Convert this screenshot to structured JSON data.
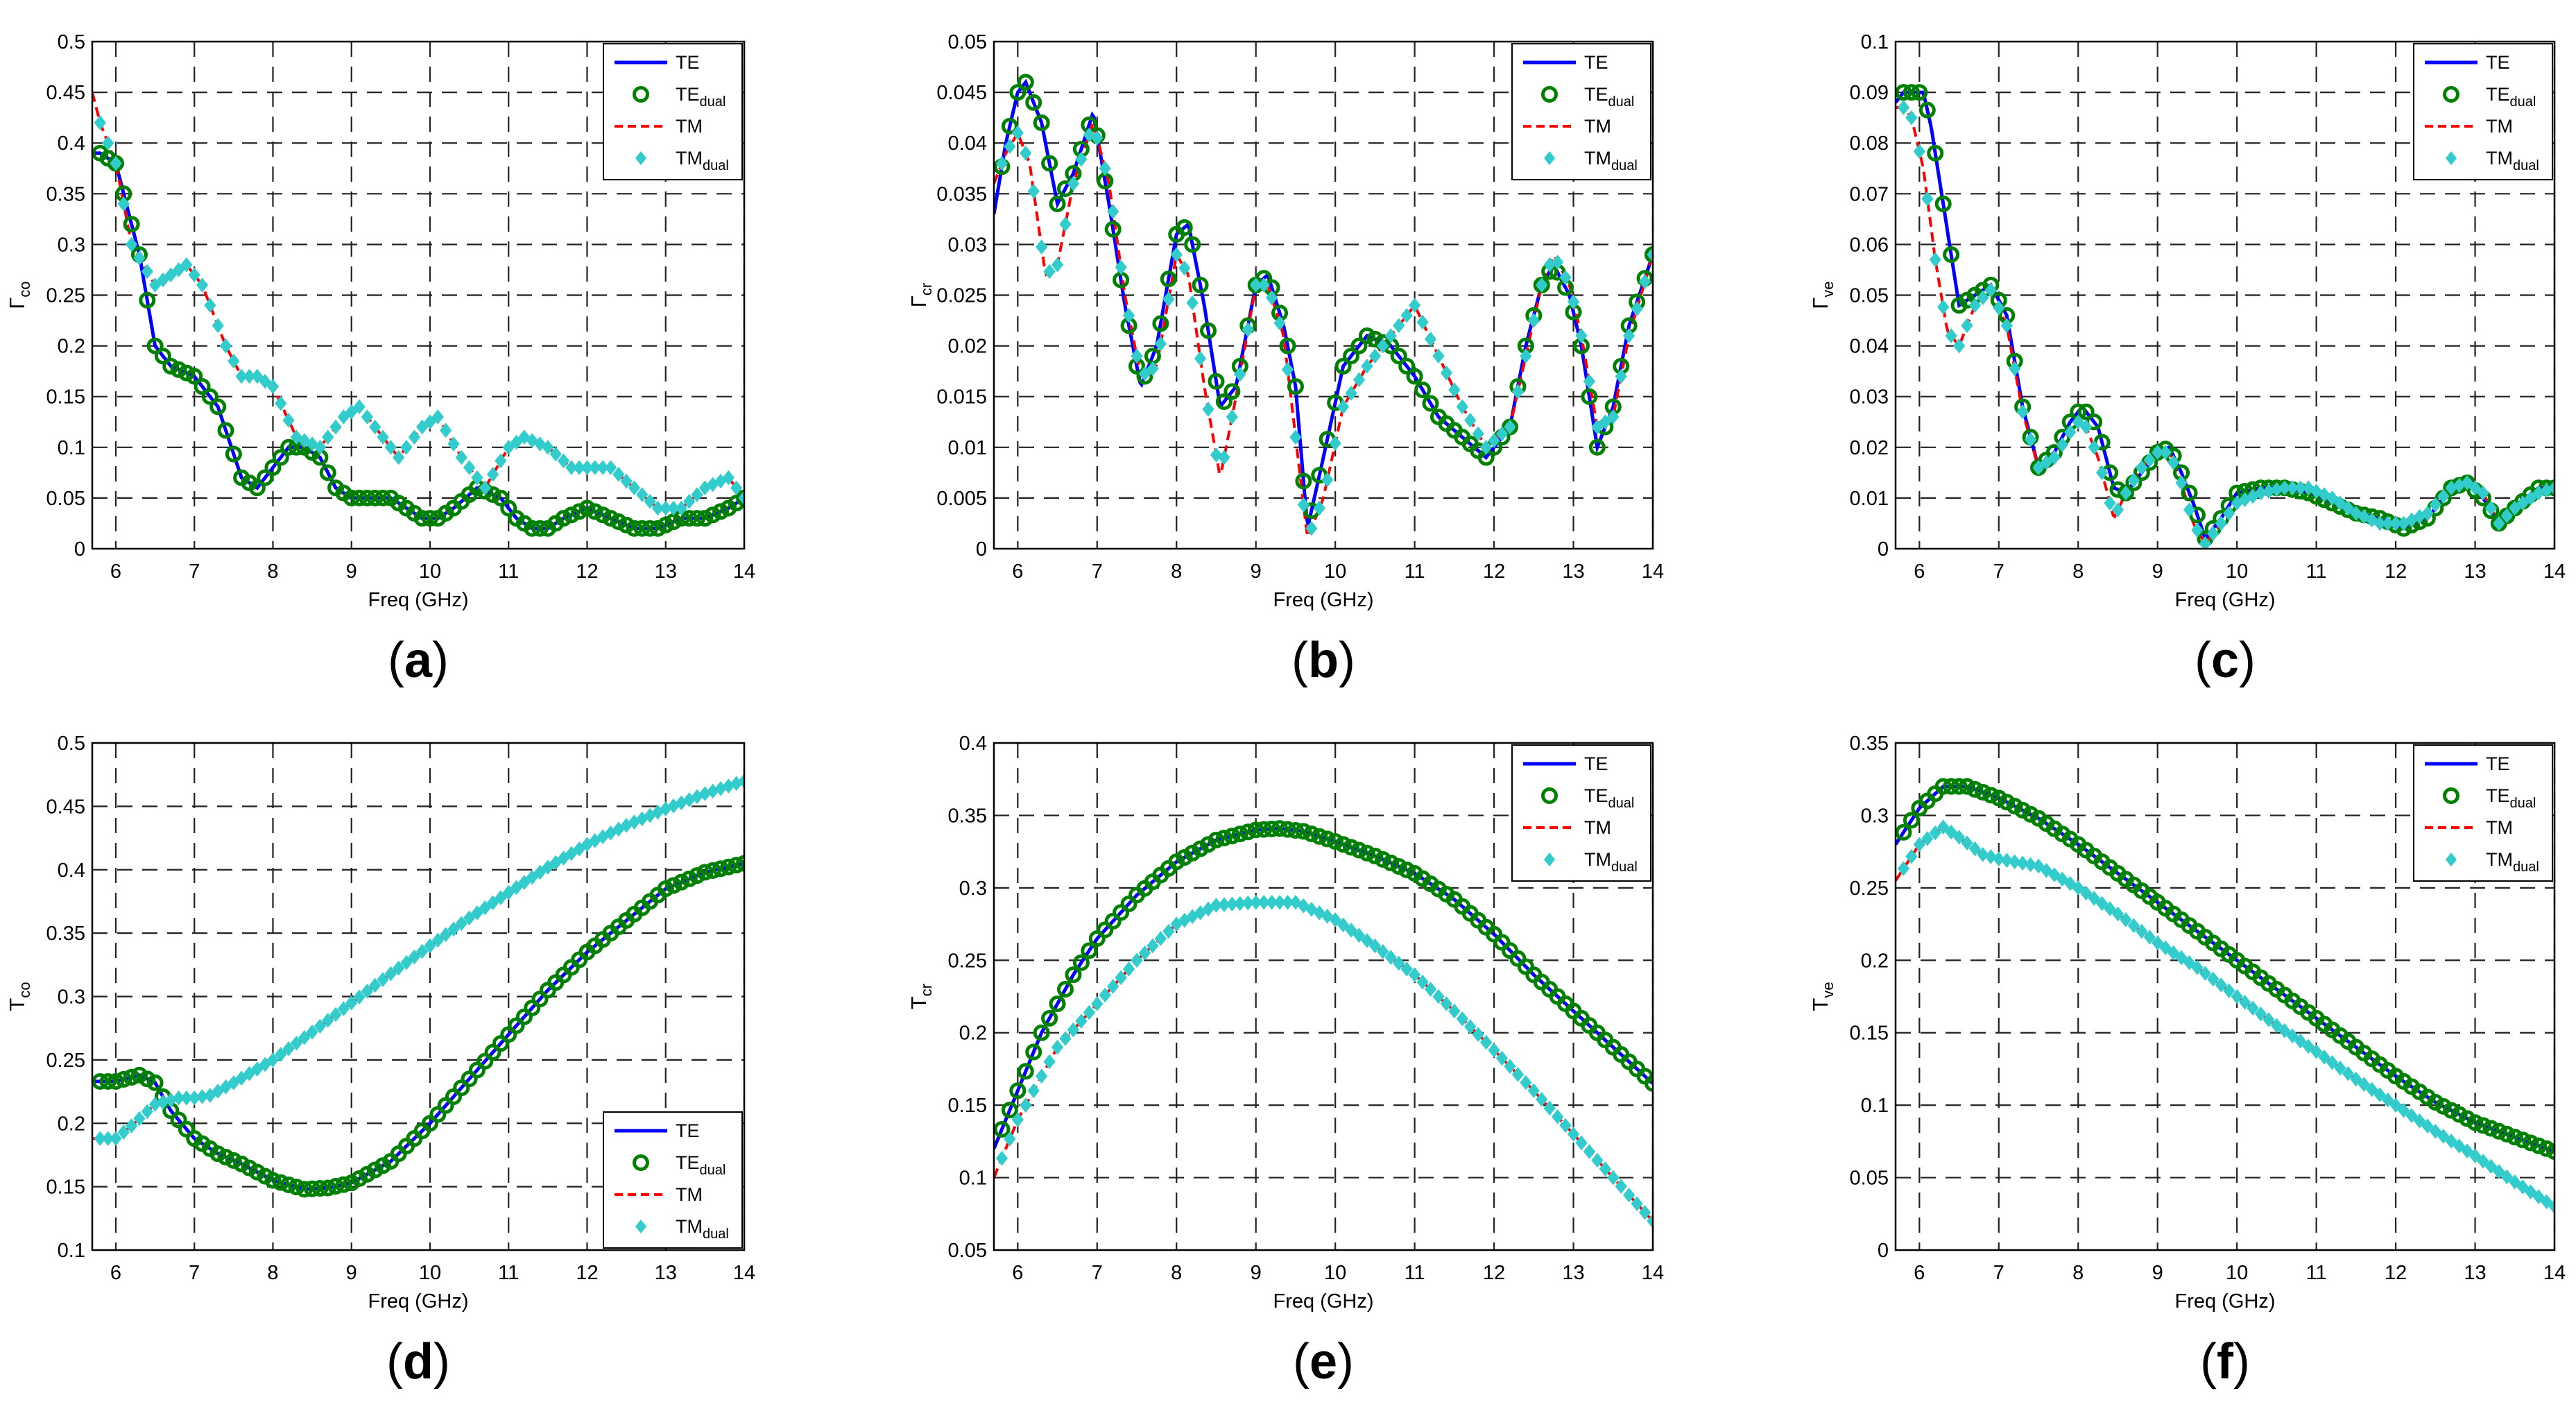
{
  "legend_entries": [
    {
      "name": "TE",
      "sub": "",
      "color": "#0000ff",
      "kind": "line"
    },
    {
      "name": "TE",
      "sub": "dual",
      "color": "#008000",
      "kind": "circle"
    },
    {
      "name": "TM",
      "sub": "",
      "color": "#ff0000",
      "kind": "dash"
    },
    {
      "name": "TM",
      "sub": "dual",
      "color": "#33cccc",
      "kind": "diamond"
    }
  ],
  "chart_data": [
    {
      "panel_label": "(a)",
      "type": "line",
      "title": "",
      "xlabel": "Freq (GHz)",
      "ylabel_main": "Γ",
      "ylabel_sub": "co",
      "xlim": [
        5.7,
        14
      ],
      "ylim": [
        0,
        0.5
      ],
      "xticks": [
        "6",
        "7",
        "8",
        "9",
        "10",
        "11",
        "12",
        "13",
        "14"
      ],
      "yticks": [
        "0",
        "0.05",
        "0.1",
        "0.15",
        "0.2",
        "0.25",
        "0.3",
        "0.35",
        "0.4",
        "0.45",
        "0.5"
      ],
      "legend_position": "top-right",
      "series": [
        {
          "name": "TE",
          "x": [
            5.7,
            5.8,
            6,
            6.1,
            6.3,
            6.5,
            6.7,
            7,
            7.3,
            7.6,
            7.8,
            8,
            8.2,
            8.4,
            8.6,
            8.8,
            9,
            9.2,
            9.5,
            9.7,
            9.9,
            10.1,
            10.3,
            10.6,
            10.9,
            11.1,
            11.3,
            11.5,
            11.7,
            12,
            12.3,
            12.6,
            12.9,
            13.2,
            13.5,
            13.8,
            14
          ],
          "values": [
            0.39,
            0.39,
            0.38,
            0.35,
            0.29,
            0.2,
            0.18,
            0.17,
            0.14,
            0.07,
            0.06,
            0.08,
            0.1,
            0.1,
            0.09,
            0.06,
            0.05,
            0.05,
            0.05,
            0.04,
            0.03,
            0.03,
            0.04,
            0.06,
            0.05,
            0.03,
            0.02,
            0.02,
            0.03,
            0.04,
            0.03,
            0.02,
            0.02,
            0.03,
            0.03,
            0.04,
            0.05
          ]
        },
        {
          "name": "TM",
          "x": [
            5.7,
            5.8,
            6,
            6.2,
            6.5,
            6.7,
            6.9,
            7.1,
            7.4,
            7.6,
            7.8,
            8,
            8.3,
            8.6,
            8.9,
            9.1,
            9.3,
            9.6,
            9.9,
            10.1,
            10.4,
            10.7,
            11,
            11.2,
            11.5,
            11.8,
            12.1,
            12.3,
            12.6,
            12.9,
            13.2,
            13.5,
            13.8,
            14
          ],
          "values": [
            0.45,
            0.42,
            0.38,
            0.3,
            0.26,
            0.27,
            0.28,
            0.26,
            0.2,
            0.17,
            0.17,
            0.16,
            0.11,
            0.1,
            0.13,
            0.14,
            0.12,
            0.09,
            0.12,
            0.13,
            0.09,
            0.06,
            0.1,
            0.11,
            0.1,
            0.08,
            0.08,
            0.08,
            0.06,
            0.04,
            0.04,
            0.06,
            0.07,
            0.05
          ]
        }
      ]
    },
    {
      "panel_label": "(b)",
      "type": "line",
      "title": "",
      "xlabel": "Freq (GHz)",
      "ylabel_main": "Γ",
      "ylabel_sub": "cr",
      "xlim": [
        5.7,
        14
      ],
      "ylim": [
        0,
        0.05
      ],
      "xticks": [
        "6",
        "7",
        "8",
        "9",
        "10",
        "11",
        "12",
        "13",
        "14"
      ],
      "yticks": [
        "0",
        "0.005",
        "0.01",
        "0.015",
        "0.02",
        "0.025",
        "0.03",
        "0.035",
        "0.04",
        "0.045",
        "0.05"
      ],
      "legend_position": "top-right",
      "series": [
        {
          "name": "TE",
          "x": [
            5.7,
            5.85,
            6,
            6.1,
            6.3,
            6.5,
            6.7,
            6.95,
            7.15,
            7.35,
            7.55,
            7.75,
            8.0,
            8.15,
            8.35,
            8.55,
            8.75,
            9.0,
            9.15,
            9.35,
            9.5,
            9.65,
            9.85,
            10.1,
            10.4,
            10.7,
            11.0,
            11.3,
            11.6,
            11.9,
            12.2,
            12.4,
            12.6,
            12.75,
            12.95,
            13.1,
            13.3,
            13.5,
            13.7,
            14
          ],
          "values": [
            0.033,
            0.04,
            0.045,
            0.046,
            0.042,
            0.034,
            0.037,
            0.043,
            0.034,
            0.024,
            0.016,
            0.02,
            0.031,
            0.032,
            0.024,
            0.014,
            0.016,
            0.026,
            0.027,
            0.022,
            0.016,
            0.002,
            0.009,
            0.018,
            0.021,
            0.02,
            0.017,
            0.013,
            0.011,
            0.009,
            0.012,
            0.02,
            0.026,
            0.028,
            0.025,
            0.02,
            0.01,
            0.014,
            0.022,
            0.029
          ]
        },
        {
          "name": "TM",
          "x": [
            5.7,
            5.85,
            6,
            6.15,
            6.35,
            6.5,
            6.7,
            6.95,
            7.15,
            7.35,
            7.55,
            7.75,
            8.0,
            8.15,
            8.35,
            8.55,
            8.75,
            9.0,
            9.15,
            9.35,
            9.5,
            9.65,
            9.85,
            10.1,
            10.4,
            10.7,
            11.0,
            11.3,
            11.6,
            11.9,
            12.2,
            12.4,
            12.6,
            12.75,
            12.95,
            13.1,
            13.3,
            13.5,
            13.7,
            14
          ],
          "values": [
            0.036,
            0.039,
            0.041,
            0.038,
            0.027,
            0.028,
            0.036,
            0.042,
            0.036,
            0.025,
            0.017,
            0.018,
            0.029,
            0.027,
            0.016,
            0.007,
            0.015,
            0.026,
            0.026,
            0.021,
            0.011,
            0.001,
            0.005,
            0.014,
            0.018,
            0.021,
            0.024,
            0.019,
            0.014,
            0.01,
            0.012,
            0.019,
            0.026,
            0.029,
            0.026,
            0.021,
            0.012,
            0.013,
            0.021,
            0.029
          ]
        }
      ]
    },
    {
      "panel_label": "(c)",
      "type": "line",
      "title": "",
      "xlabel": "Freq (GHz)",
      "ylabel_main": "Γ",
      "ylabel_sub": "ve",
      "xlim": [
        5.7,
        14
      ],
      "ylim": [
        0,
        0.1
      ],
      "xticks": [
        "6",
        "7",
        "8",
        "9",
        "10",
        "11",
        "12",
        "13",
        "14"
      ],
      "yticks": [
        "0",
        "0.01",
        "0.02",
        "0.03",
        "0.04",
        "0.05",
        "0.06",
        "0.07",
        "0.08",
        "0.09",
        "0.1"
      ],
      "legend_position": "top-right",
      "series": [
        {
          "name": "TE",
          "x": [
            5.7,
            5.8,
            5.9,
            6.05,
            6.15,
            6.3,
            6.5,
            6.7,
            6.9,
            7.1,
            7.3,
            7.5,
            7.7,
            7.9,
            8.05,
            8.25,
            8.45,
            8.6,
            8.8,
            9.0,
            9.15,
            9.3,
            9.45,
            9.6,
            9.8,
            10.0,
            10.3,
            10.6,
            10.9,
            11.2,
            11.5,
            11.8,
            12.1,
            12.4,
            12.7,
            12.9,
            13.1,
            13.3,
            13.5,
            13.8,
            14
          ],
          "values": [
            0.088,
            0.09,
            0.09,
            0.09,
            0.083,
            0.068,
            0.048,
            0.05,
            0.052,
            0.046,
            0.028,
            0.016,
            0.019,
            0.025,
            0.028,
            0.024,
            0.012,
            0.011,
            0.015,
            0.019,
            0.02,
            0.015,
            0.009,
            0.002,
            0.006,
            0.011,
            0.012,
            0.012,
            0.011,
            0.009,
            0.007,
            0.006,
            0.004,
            0.006,
            0.012,
            0.013,
            0.01,
            0.005,
            0.008,
            0.012,
            0.012
          ]
        },
        {
          "name": "TM",
          "x": [
            5.7,
            5.8,
            5.9,
            6.05,
            6.2,
            6.35,
            6.5,
            6.7,
            6.9,
            7.1,
            7.3,
            7.5,
            7.7,
            7.9,
            8.05,
            8.25,
            8.45,
            8.6,
            8.8,
            9.0,
            9.15,
            9.3,
            9.45,
            9.6,
            9.8,
            10.0,
            10.3,
            10.6,
            10.9,
            11.2,
            11.5,
            11.8,
            12.1,
            12.4,
            12.7,
            12.9,
            13.1,
            13.3,
            13.5,
            13.8,
            14
          ],
          "values": [
            0.087,
            0.087,
            0.085,
            0.075,
            0.057,
            0.043,
            0.04,
            0.048,
            0.051,
            0.044,
            0.027,
            0.016,
            0.018,
            0.023,
            0.026,
            0.018,
            0.006,
            0.011,
            0.016,
            0.019,
            0.019,
            0.013,
            0.005,
            0.001,
            0.005,
            0.009,
            0.011,
            0.012,
            0.012,
            0.01,
            0.007,
            0.005,
            0.005,
            0.007,
            0.012,
            0.013,
            0.011,
            0.005,
            0.008,
            0.011,
            0.012
          ]
        }
      ]
    },
    {
      "panel_label": "(d)",
      "type": "line",
      "title": "",
      "xlabel": "Freq (GHz)",
      "ylabel_main": "T",
      "ylabel_sub": "co",
      "xlim": [
        5.7,
        14
      ],
      "ylim": [
        0.1,
        0.5
      ],
      "xticks": [
        "6",
        "7",
        "8",
        "9",
        "10",
        "11",
        "12",
        "13",
        "14"
      ],
      "yticks": [
        "0.1",
        "0.15",
        "0.2",
        "0.25",
        "0.3",
        "0.35",
        "0.4",
        "0.45",
        "0.5"
      ],
      "legend_position": "bottom-right",
      "series": [
        {
          "name": "TE",
          "x": [
            5.7,
            6,
            6.3,
            6.5,
            6.7,
            7,
            7.3,
            7.6,
            8,
            8.4,
            8.7,
            9,
            9.5,
            10,
            10.5,
            11,
            11.5,
            12,
            12.5,
            13,
            13.5,
            14
          ],
          "values": [
            0.233,
            0.233,
            0.238,
            0.232,
            0.21,
            0.188,
            0.176,
            0.168,
            0.155,
            0.148,
            0.149,
            0.153,
            0.17,
            0.2,
            0.235,
            0.27,
            0.305,
            0.335,
            0.36,
            0.385,
            0.398,
            0.405
          ]
        },
        {
          "name": "TM",
          "x": [
            5.7,
            6,
            6.2,
            6.5,
            6.8,
            7,
            7.2,
            7.5,
            8,
            8.5,
            9,
            9.5,
            10,
            10.5,
            11,
            11.5,
            12,
            12.5,
            13,
            13.5,
            14
          ],
          "values": [
            0.188,
            0.188,
            0.198,
            0.215,
            0.22,
            0.22,
            0.222,
            0.232,
            0.25,
            0.272,
            0.295,
            0.318,
            0.34,
            0.362,
            0.382,
            0.402,
            0.42,
            0.435,
            0.448,
            0.46,
            0.47
          ]
        }
      ]
    },
    {
      "panel_label": "(e)",
      "type": "line",
      "title": "",
      "xlabel": "Freq (GHz)",
      "ylabel_main": "T",
      "ylabel_sub": "cr",
      "xlim": [
        5.7,
        14
      ],
      "ylim": [
        0.05,
        0.4
      ],
      "xticks": [
        "6",
        "7",
        "8",
        "9",
        "10",
        "11",
        "12",
        "13",
        "14"
      ],
      "yticks": [
        "0.05",
        "0.1",
        "0.15",
        "0.2",
        "0.25",
        "0.3",
        "0.35",
        "0.4"
      ],
      "legend_position": "top-right",
      "series": [
        {
          "name": "TE",
          "x": [
            5.7,
            6,
            6.3,
            6.7,
            7,
            7.5,
            8,
            8.5,
            9,
            9.3,
            9.6,
            10,
            10.5,
            11,
            11.5,
            12,
            12.5,
            13,
            13.5,
            14
          ],
          "values": [
            0.12,
            0.16,
            0.2,
            0.24,
            0.265,
            0.295,
            0.318,
            0.333,
            0.34,
            0.341,
            0.339,
            0.332,
            0.322,
            0.31,
            0.292,
            0.268,
            0.24,
            0.215,
            0.19,
            0.165
          ]
        },
        {
          "name": "TM",
          "x": [
            5.7,
            6,
            6.5,
            7,
            7.5,
            8,
            8.5,
            9,
            9.5,
            10,
            10.5,
            11,
            11.5,
            12,
            12.5,
            13,
            13.5,
            14
          ],
          "values": [
            0.1,
            0.14,
            0.19,
            0.22,
            0.25,
            0.275,
            0.288,
            0.29,
            0.29,
            0.278,
            0.26,
            0.24,
            0.215,
            0.188,
            0.16,
            0.13,
            0.1,
            0.07
          ]
        }
      ]
    },
    {
      "panel_label": "(f)",
      "type": "line",
      "title": "",
      "xlabel": "Freq (GHz)",
      "ylabel_main": "T",
      "ylabel_sub": "ve",
      "xlim": [
        5.7,
        14
      ],
      "ylim": [
        0,
        0.35
      ],
      "xticks": [
        "6",
        "7",
        "8",
        "9",
        "10",
        "11",
        "12",
        "13",
        "14"
      ],
      "yticks": [
        "0",
        "0.05",
        "0.1",
        "0.15",
        "0.2",
        "0.25",
        "0.3",
        "0.35"
      ],
      "legend_position": "top-right",
      "series": [
        {
          "name": "TE",
          "x": [
            5.7,
            6,
            6.3,
            6.6,
            7,
            7.5,
            8,
            8.5,
            9,
            9.5,
            10,
            10.5,
            11,
            11.5,
            12,
            12.5,
            13,
            13.5,
            14
          ],
          "values": [
            0.28,
            0.305,
            0.32,
            0.32,
            0.312,
            0.298,
            0.28,
            0.26,
            0.24,
            0.22,
            0.2,
            0.18,
            0.16,
            0.14,
            0.12,
            0.102,
            0.088,
            0.078,
            0.068
          ]
        },
        {
          "name": "TM",
          "x": [
            5.7,
            6,
            6.3,
            6.5,
            6.8,
            7,
            7.5,
            8,
            8.5,
            9,
            9.5,
            10,
            10.5,
            11,
            11.5,
            12,
            12.5,
            13,
            13.5,
            14
          ],
          "values": [
            0.255,
            0.28,
            0.292,
            0.285,
            0.273,
            0.27,
            0.265,
            0.25,
            0.232,
            0.212,
            0.195,
            0.175,
            0.155,
            0.137,
            0.118,
            0.1,
            0.082,
            0.065,
            0.047,
            0.03
          ]
        }
      ]
    }
  ]
}
